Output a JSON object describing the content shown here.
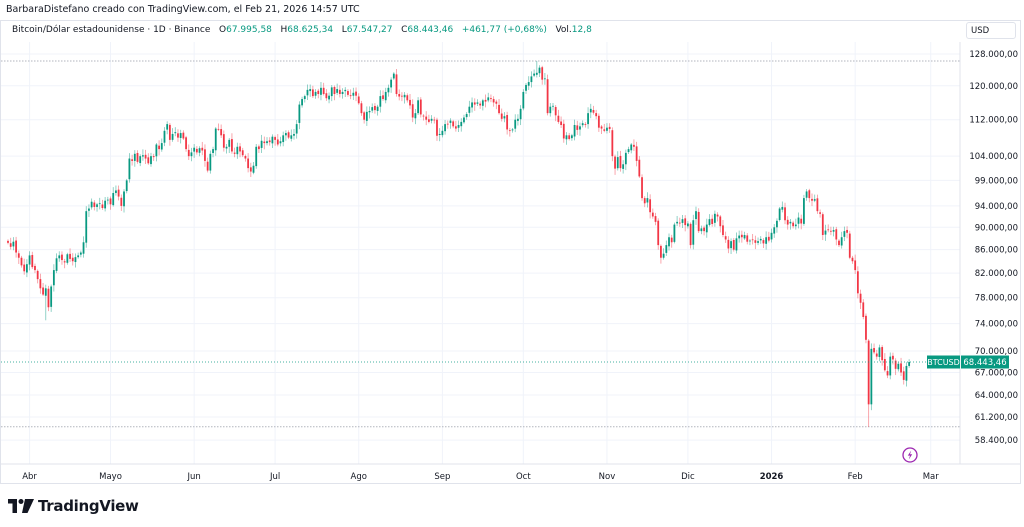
{
  "caption": "BarbaraDistefano creado con TradingView.com, el Feb 21, 2026 14:57 UTC",
  "legend": {
    "symbol": "Bitcoin/Dólar estadounidense · 1D · Binance",
    "o_label": "O",
    "o": "67.995,58",
    "h_label": "H",
    "h": "68.625,34",
    "l_label": "L",
    "l": "67.547,27",
    "c_label": "C",
    "c": "68.443,46",
    "change": "+461,77 (+0,68%)",
    "vol_label": "Vol.",
    "vol": "12,8"
  },
  "currency": "USD",
  "last_price": {
    "symbol": "BTCUSD",
    "value": "68.443,46",
    "price": 68443.46
  },
  "logo_text": "TradingView",
  "colors": {
    "up": "#089981",
    "down": "#f23645",
    "accent": "#089981",
    "grid": "#f0f3fa",
    "event_icon": "#9c27b0"
  },
  "chart_data": {
    "type": "candlestick",
    "interval": "1D",
    "y_scale": "log",
    "ylim": [
      57000,
      131000
    ],
    "grid": true,
    "y_ticks": [
      {
        "v": 128000,
        "label": "128.000,00"
      },
      {
        "v": 120000,
        "label": "120.000,00"
      },
      {
        "v": 112000,
        "label": "112.000,00"
      },
      {
        "v": 104000,
        "label": "104.000,00"
      },
      {
        "v": 99000,
        "label": "99.000,00"
      },
      {
        "v": 94000,
        "label": "94.000,00"
      },
      {
        "v": 90000,
        "label": "90.000,00"
      },
      {
        "v": 86000,
        "label": "86.000,00"
      },
      {
        "v": 82000,
        "label": "82.000,00"
      },
      {
        "v": 78000,
        "label": "78.000,00"
      },
      {
        "v": 74000,
        "label": "74.000,00"
      },
      {
        "v": 70000,
        "label": "70.000,00"
      },
      {
        "v": 67000,
        "label": "67.000,00"
      },
      {
        "v": 64000,
        "label": "64.000,00"
      },
      {
        "v": 61200,
        "label": "61.200,00"
      },
      {
        "v": 58400,
        "label": "58.400,00"
      }
    ],
    "x_ticks": [
      {
        "date": "2025-04-01",
        "label": "Abr"
      },
      {
        "date": "2025-05-01",
        "label": "Mayo"
      },
      {
        "date": "2025-06-01",
        "label": "Jun"
      },
      {
        "date": "2025-07-01",
        "label": "Jul"
      },
      {
        "date": "2025-08-01",
        "label": "Ago"
      },
      {
        "date": "2025-09-01",
        "label": "Sep"
      },
      {
        "date": "2025-10-01",
        "label": "Oct"
      },
      {
        "date": "2025-11-01",
        "label": "Nov"
      },
      {
        "date": "2025-12-01",
        "label": "Dic"
      },
      {
        "date": "2026-01-01",
        "label": "2026",
        "bold": true
      },
      {
        "date": "2026-02-01",
        "label": "Feb"
      },
      {
        "date": "2026-03-01",
        "label": "Mar"
      }
    ],
    "start_date": "2025-03-24",
    "end_date": "2026-02-21",
    "closes_usd_thousands": [
      87.2,
      86.5,
      87.4,
      85.5,
      84.6,
      83.3,
      82.3,
      83.5,
      85.0,
      83.0,
      82.5,
      81.0,
      79.5,
      78.5,
      79.5,
      76.5,
      79.8,
      82.5,
      84.5,
      85.0,
      84.2,
      83.8,
      85.2,
      84.4,
      84.0,
      84.7,
      85.0,
      85.5,
      87.3,
      93.0,
      93.5,
      94.8,
      93.8,
      94.3,
      94.5,
      93.6,
      95.0,
      95.2,
      94.3,
      96.5,
      97.0,
      95.8,
      94.0,
      96.8,
      99.0,
      103.5,
      103.0,
      104.5,
      102.8,
      104.0,
      104.2,
      103.5,
      102.5,
      104.0,
      103.8,
      106.5,
      105.5,
      106.8,
      109.5,
      111.0,
      107.5,
      108.8,
      109.2,
      108.0,
      109.0,
      107.8,
      105.5,
      104.0,
      104.8,
      105.8,
      104.8,
      105.7,
      105.2,
      103.0,
      101.0,
      104.5,
      105.5,
      110.0,
      109.8,
      108.5,
      105.8,
      106.0,
      107.5,
      105.0,
      104.5,
      106.0,
      105.0,
      104.2,
      103.5,
      101.5,
      100.8,
      102.0,
      106.0,
      105.5,
      107.3,
      106.8,
      107.2,
      107.0,
      108.2,
      107.5,
      106.5,
      107.2,
      108.5,
      109.0,
      108.0,
      108.5,
      108.8,
      111.0,
      115.5,
      116.8,
      117.5,
      119.0,
      119.2,
      117.5,
      118.5,
      118.0,
      119.5,
      118.0,
      117.0,
      117.6,
      119.6,
      118.0,
      119.2,
      118.0,
      118.5,
      119.0,
      117.8,
      117.5,
      118.3,
      117.6,
      115.8,
      113.5,
      112.0,
      113.8,
      114.0,
      114.9,
      114.2,
      115.0,
      117.5,
      116.8,
      118.5,
      119.5,
      121.5,
      123.0,
      118.0,
      117.4,
      117.5,
      117.8,
      116.5,
      115.3,
      112.5,
      113.5,
      116.5,
      113.2,
      112.8,
      112.0,
      111.5,
      112.2,
      112.0,
      108.4,
      108.8,
      109.5,
      111.0,
      111.0,
      111.8,
      110.5,
      110.0,
      110.8,
      111.5,
      112.5,
      113.3,
      115.0,
      116.0,
      115.5,
      116.0,
      115.3,
      116.5,
      116.2,
      117.2,
      116.8,
      116.0,
      115.7,
      113.5,
      112.2,
      112.8,
      109.8,
      109.6,
      109.8,
      112.0,
      112.2,
      114.5,
      118.5,
      120.2,
      120.9,
      122.3,
      123.0,
      123.2,
      124.5,
      121.5,
      121.8,
      113.5,
      115.0,
      115.2,
      113.0,
      111.5,
      110.8,
      107.8,
      108.5,
      107.7,
      108.5,
      110.8,
      109.7,
      110.5,
      111.2,
      111.0,
      113.5,
      114.5,
      113.6,
      112.8,
      110.2,
      110.0,
      109.5,
      110.2,
      109.9,
      104.0,
      101.4,
      103.8,
      101.5,
      102.3,
      104.7,
      105.5,
      106.5,
      106.0,
      103.0,
      99.8,
      95.5,
      94.5,
      95.5,
      92.8,
      92.0,
      91.0,
      86.8,
      84.6,
      85.3,
      86.8,
      88.2,
      87.3,
      90.5,
      91.0,
      90.8,
      91.5,
      90.4,
      90.7,
      86.8,
      91.3,
      93.0,
      89.3,
      89.8,
      89.3,
      90.5,
      91.5,
      90.6,
      92.5,
      92.0,
      90.2,
      88.6,
      87.8,
      86.2,
      87.5,
      86.0,
      88.0,
      88.5,
      88.2,
      88.6,
      87.4,
      87.6,
      87.8,
      87.2,
      87.5,
      87.9,
      87.1,
      88.2,
      87.6,
      89.0,
      90.0,
      91.2,
      93.5,
      93.8,
      91.3,
      90.5,
      91.0,
      90.2,
      90.5,
      91.8,
      90.7,
      95.5,
      96.8,
      95.5,
      95.0,
      95.3,
      93.0,
      92.5,
      88.6,
      89.4,
      89.5,
      89.2,
      89.5,
      87.8,
      86.8,
      88.2,
      89.3,
      89.0,
      84.6,
      84.0,
      82.5,
      78.7,
      77.2,
      75.0,
      71.6,
      62.8,
      70.3,
      69.8,
      69.2,
      70.5,
      68.7,
      67.3,
      66.6,
      69.2,
      68.8,
      67.5,
      68.2,
      67.0,
      66.0,
      67.9,
      68.44
    ],
    "marked_extremes": [
      {
        "date": "2025-10-06",
        "high": 126198
      },
      {
        "date": "2026-02-06",
        "low": 60000
      },
      {
        "date": "2025-04-07",
        "low": 74500
      }
    ]
  }
}
